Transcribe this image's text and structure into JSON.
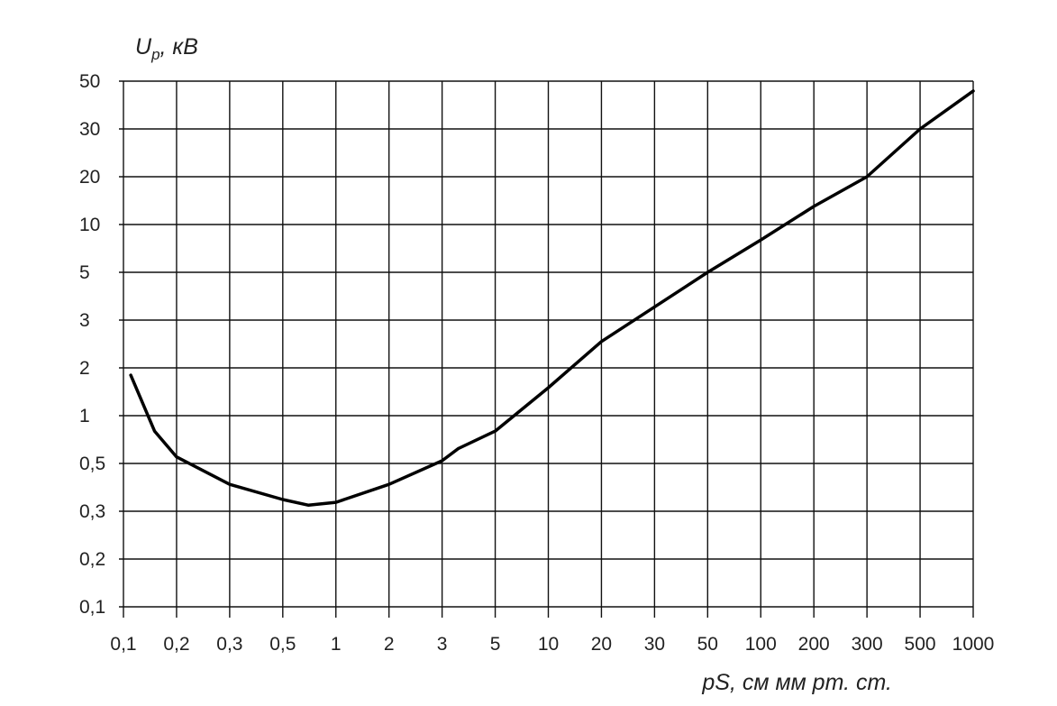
{
  "chart_data": {
    "type": "line",
    "y_label": {
      "main": "U",
      "sub": "p",
      "rest": ", кВ"
    },
    "x_label": "pS, см мм рт. ст.",
    "xscale": "log",
    "yscale": "log",
    "grid": true,
    "color": "#000000",
    "xticks": [
      {
        "value": 0.1,
        "label": "0,1"
      },
      {
        "value": 0.2,
        "label": "0,2"
      },
      {
        "value": 0.3,
        "label": "0,3"
      },
      {
        "value": 0.5,
        "label": "0,5"
      },
      1,
      2,
      3,
      5,
      10,
      20,
      30,
      50,
      100,
      200,
      300,
      500,
      1000
    ],
    "yticks": [
      {
        "value": 0.1,
        "label": "0,1"
      },
      {
        "value": 0.2,
        "label": "0,2"
      },
      {
        "value": 0.3,
        "label": "0,3"
      },
      {
        "value": 0.5,
        "label": "0,5"
      },
      1,
      2,
      3,
      5,
      10,
      20,
      30,
      50
    ],
    "xlim": [
      0.1,
      1000
    ],
    "ylim": [
      0.1,
      50
    ],
    "x": [
      0.11,
      0.15,
      0.2,
      0.3,
      0.5,
      0.7,
      1,
      2,
      3,
      3.5,
      5,
      10,
      20,
      50,
      100,
      200,
      300,
      500,
      1000
    ],
    "values": [
      1.8,
      0.8,
      0.55,
      0.4,
      0.34,
      0.32,
      0.33,
      0.4,
      0.52,
      0.62,
      0.8,
      1.5,
      2.5,
      5,
      8,
      13,
      20,
      30,
      45
    ]
  }
}
